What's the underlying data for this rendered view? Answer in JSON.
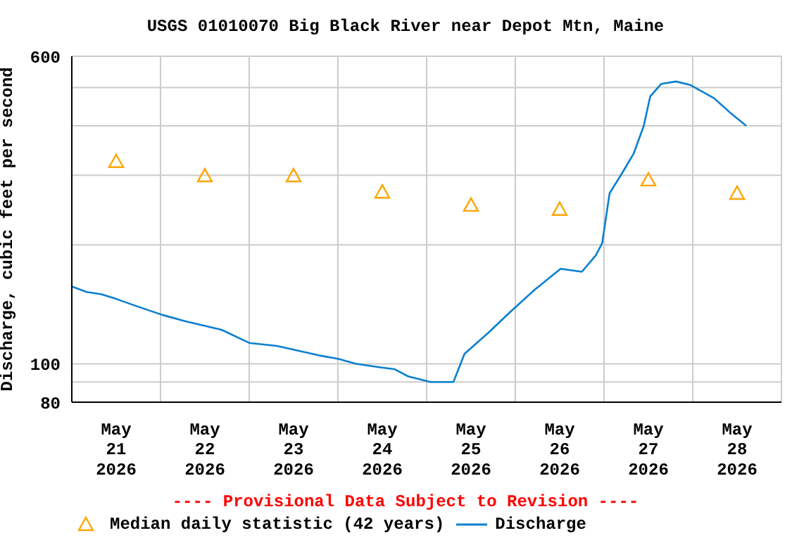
{
  "chart_data": {
    "type": "line",
    "title": "USGS 01010070 Big Black River near Depot Mtn, Maine",
    "ylabel": "Discharge, cubic feet per second",
    "annotations": [
      "---- Provisional Data Subject to Revision ----"
    ],
    "log": "y",
    "grid": true,
    "legend": "bottom",
    "xlim": [
      "2026-05-21T00:00",
      "2026-05-29T00:00"
    ],
    "xticks": [
      {
        "value": "2026-05-21T00:00",
        "label": null
      },
      {
        "value": "2026-05-21T12:00",
        "label": "May\n21\n2026"
      },
      {
        "value": "2026-05-22T00:00",
        "label": null
      },
      {
        "value": "2026-05-22T12:00",
        "label": "May\n22\n2026"
      },
      {
        "value": "2026-05-23T00:00",
        "label": null
      },
      {
        "value": "2026-05-23T12:00",
        "label": "May\n23\n2026"
      },
      {
        "value": "2026-05-24T00:00",
        "label": null
      },
      {
        "value": "2026-05-24T12:00",
        "label": "May\n24\n2026"
      },
      {
        "value": "2026-05-25T00:00",
        "label": null
      },
      {
        "value": "2026-05-25T12:00",
        "label": "May\n25\n2026"
      },
      {
        "value": "2026-05-26T00:00",
        "label": null
      },
      {
        "value": "2026-05-26T12:00",
        "label": "May\n26\n2026"
      },
      {
        "value": "2026-05-27T00:00",
        "label": null
      },
      {
        "value": "2026-05-27T12:00",
        "label": "May\n27\n2026"
      },
      {
        "value": "2026-05-28T00:00",
        "label": null
      },
      {
        "value": "2026-05-28T12:00",
        "label": "May\n28\n2026"
      },
      {
        "value": "2026-05-29T00:00",
        "label": null
      }
    ],
    "ylim": [
      80,
      600
    ],
    "yticks": [
      80,
      {
        "value": 90,
        "label": null
      },
      100,
      {
        "value": 200,
        "label": null
      },
      {
        "value": 300,
        "label": null
      },
      {
        "value": 400,
        "label": null
      },
      {
        "value": 500,
        "label": null
      },
      600
    ],
    "series": [
      {
        "name": "Median daily statistic (42 years)",
        "type": "scatter",
        "marker": "triangle",
        "color": "#ffa500",
        "x": [
          "2026-05-21T12:00",
          "2026-05-22T12:00",
          "2026-05-23T12:00",
          "2026-05-24T12:00",
          "2026-05-25T12:00",
          "2026-05-26T12:00",
          "2026-05-27T12:00",
          "2026-05-28T12:00"
        ],
        "values": [
          325,
          299,
          299,
          272,
          252,
          246,
          292,
          270
        ]
      },
      {
        "name": "Discharge",
        "marker": "none",
        "color": "#0a7fd0",
        "x": [
          "2026-05-21T00:00",
          "2026-05-21T04:00",
          "2026-05-21T08:00",
          "2026-05-21T12:00",
          "2026-05-21T17:30",
          "2026-05-22T00:30",
          "2026-05-22T07:00",
          "2026-05-22T16:30",
          "2026-05-23T00:00",
          "2026-05-23T07:30",
          "2026-05-23T19:00",
          "2026-05-24T00:00",
          "2026-05-24T05:00",
          "2026-05-24T11:30",
          "2026-05-24T15:15",
          "2026-05-24T19:00",
          "2026-05-25T01:00",
          "2026-05-25T07:15",
          "2026-05-25T10:15",
          "2026-05-25T16:45",
          "2026-05-25T22:30",
          "2026-05-26T05:15",
          "2026-05-26T12:15",
          "2026-05-26T18:00",
          "2026-05-26T21:45",
          "2026-05-26T23:30",
          "2026-05-27T01:30",
          "2026-05-27T05:00",
          "2026-05-27T08:00",
          "2026-05-27T10:45",
          "2026-05-27T12:30",
          "2026-05-27T15:30",
          "2026-05-27T19:30",
          "2026-05-27T23:15",
          "2026-05-28T05:45",
          "2026-05-28T10:00",
          "2026-05-28T14:30"
        ],
        "values": [
          157,
          152,
          150,
          146,
          140,
          133,
          128,
          122,
          113,
          111,
          105,
          103,
          100,
          98,
          97,
          93,
          90,
          90,
          106,
          120,
          135,
          154,
          174,
          171,
          188,
          202,
          270,
          305,
          340,
          400,
          475,
          511,
          518,
          508,
          470,
          433,
          400
        ]
      }
    ]
  }
}
